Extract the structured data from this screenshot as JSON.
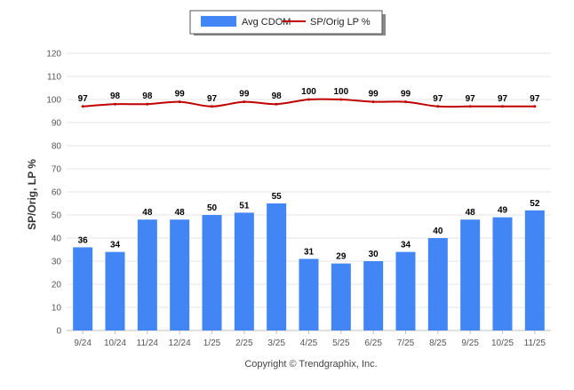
{
  "chart_data": {
    "type": "bar",
    "categories": [
      "9/24",
      "10/24",
      "11/24",
      "12/24",
      "1/25",
      "2/25",
      "3/25",
      "4/25",
      "5/25",
      "6/25",
      "7/25",
      "8/25",
      "9/25",
      "10/25",
      "11/25"
    ],
    "series": [
      {
        "name": "Avg CDOM",
        "type": "bar",
        "color": "#4285f4",
        "values": [
          36,
          34,
          48,
          48,
          50,
          51,
          55,
          31,
          29,
          30,
          34,
          40,
          48,
          49,
          52
        ]
      },
      {
        "name": "SP/Orig LP %",
        "type": "line",
        "color": "#c00000",
        "values": [
          97,
          98,
          98,
          99,
          97,
          99,
          98,
          100,
          100,
          99,
          99,
          97,
          97,
          97,
          97
        ]
      }
    ],
    "ylabel": "SP/Orig, LP %",
    "ylim": [
      0,
      120
    ],
    "yticks": [
      0,
      10,
      20,
      30,
      40,
      50,
      60,
      70,
      80,
      90,
      100,
      110,
      120
    ],
    "grid": true,
    "legend": "top-center",
    "credit": "Copyright © Trendgraphix, Inc."
  }
}
